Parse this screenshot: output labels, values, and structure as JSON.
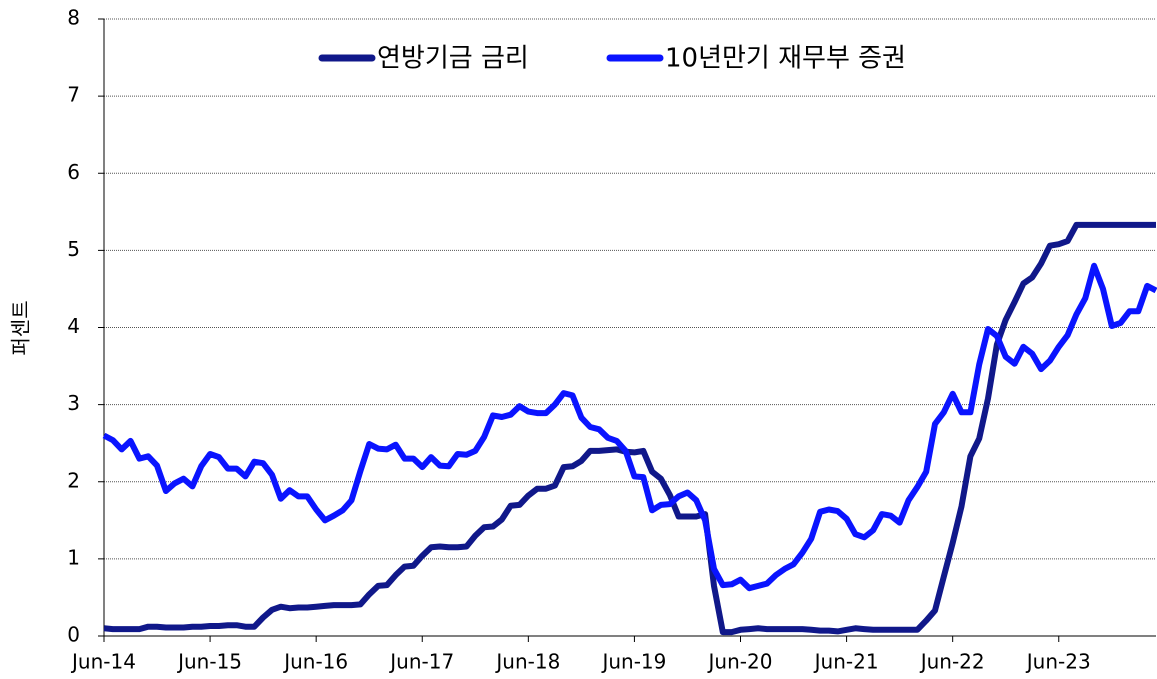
{
  "chart_data": {
    "type": "line",
    "y_label": "퍼센트",
    "categories": [
      "Jun-14",
      null,
      null,
      null,
      null,
      null,
      null,
      null,
      null,
      null,
      null,
      null,
      "Jun-15",
      null,
      null,
      null,
      null,
      null,
      null,
      null,
      null,
      null,
      null,
      null,
      "Jun-16",
      null,
      null,
      null,
      null,
      null,
      null,
      null,
      null,
      null,
      null,
      null,
      "Jun-17",
      null,
      null,
      null,
      null,
      null,
      null,
      null,
      null,
      null,
      null,
      null,
      "Jun-18",
      null,
      null,
      null,
      null,
      null,
      null,
      null,
      null,
      null,
      null,
      null,
      "Jun-19",
      null,
      null,
      null,
      null,
      null,
      null,
      null,
      null,
      null,
      null,
      null,
      "Jun-20",
      null,
      null,
      null,
      null,
      null,
      null,
      null,
      null,
      null,
      null,
      null,
      "Jun-21",
      null,
      null,
      null,
      null,
      null,
      null,
      null,
      null,
      null,
      null,
      null,
      "Jun-22",
      null,
      null,
      null,
      null,
      null,
      null,
      null,
      null,
      null,
      null,
      null,
      "Jun-23",
      null,
      null,
      null,
      null,
      null,
      null,
      null,
      null,
      null,
      null,
      null
    ],
    "series": [
      {
        "name": "연방기금 금리",
        "color": "#10188a",
        "values": [
          0.1,
          0.09,
          0.09,
          0.09,
          0.09,
          0.12,
          0.12,
          0.11,
          0.11,
          0.11,
          0.12,
          0.12,
          0.13,
          0.13,
          0.14,
          0.14,
          0.12,
          0.12,
          0.24,
          0.34,
          0.38,
          0.36,
          0.37,
          0.37,
          0.38,
          0.39,
          0.4,
          0.4,
          0.4,
          0.41,
          0.54,
          0.65,
          0.66,
          0.79,
          0.9,
          0.91,
          1.04,
          1.15,
          1.16,
          1.15,
          1.15,
          1.16,
          1.3,
          1.41,
          1.42,
          1.51,
          1.69,
          1.7,
          1.82,
          1.91,
          1.91,
          1.95,
          2.19,
          2.2,
          2.27,
          2.4,
          2.4,
          2.41,
          2.42,
          2.39,
          2.38,
          2.4,
          2.13,
          2.04,
          1.83,
          1.55,
          1.55,
          1.55,
          1.58,
          0.65,
          0.05,
          0.05,
          0.08,
          0.09,
          0.1,
          0.09,
          0.09,
          0.09,
          0.09,
          0.09,
          0.08,
          0.07,
          0.07,
          0.06,
          0.08,
          0.1,
          0.09,
          0.08,
          0.08,
          0.08,
          0.08,
          0.08,
          0.08,
          0.2,
          0.33,
          0.77,
          1.21,
          1.68,
          2.33,
          2.56,
          3.08,
          3.78,
          4.1,
          4.33,
          4.57,
          4.65,
          4.83,
          5.06,
          5.08,
          5.12,
          5.33,
          5.33,
          5.33,
          5.33,
          5.33,
          5.33,
          5.33,
          5.33,
          5.33,
          5.33
        ]
      },
      {
        "name": "10년만기 재무부 증권",
        "color": "#0a14ff",
        "values": [
          2.6,
          2.54,
          2.42,
          2.53,
          2.3,
          2.33,
          2.21,
          1.88,
          1.98,
          2.04,
          1.94,
          2.2,
          2.36,
          2.32,
          2.17,
          2.17,
          2.07,
          2.26,
          2.24,
          2.09,
          1.78,
          1.89,
          1.81,
          1.81,
          1.64,
          1.5,
          1.56,
          1.63,
          1.76,
          2.14,
          2.49,
          2.43,
          2.42,
          2.48,
          2.3,
          2.3,
          2.19,
          2.32,
          2.21,
          2.2,
          2.36,
          2.35,
          2.4,
          2.58,
          2.86,
          2.84,
          2.87,
          2.98,
          2.91,
          2.89,
          2.89,
          3.0,
          3.15,
          3.12,
          2.83,
          2.71,
          2.68,
          2.57,
          2.53,
          2.4,
          2.07,
          2.06,
          1.63,
          1.7,
          1.71,
          1.81,
          1.86,
          1.76,
          1.5,
          0.87,
          0.66,
          0.67,
          0.73,
          0.62,
          0.65,
          0.68,
          0.79,
          0.87,
          0.93,
          1.08,
          1.26,
          1.61,
          1.64,
          1.62,
          1.52,
          1.32,
          1.28,
          1.37,
          1.58,
          1.56,
          1.47,
          1.76,
          1.93,
          2.13,
          2.75,
          2.9,
          3.14,
          2.9,
          2.9,
          3.52,
          3.98,
          3.89,
          3.62,
          3.53,
          3.75,
          3.66,
          3.46,
          3.57,
          3.75,
          3.9,
          4.17,
          4.38,
          4.8,
          4.5,
          4.02,
          4.06,
          4.21,
          4.21,
          4.54,
          4.48
        ]
      }
    ],
    "ylim": [
      0,
      8
    ],
    "yticks": [
      0,
      1,
      2,
      3,
      4,
      5,
      6,
      7,
      8
    ],
    "grid": true,
    "legend": "top"
  }
}
